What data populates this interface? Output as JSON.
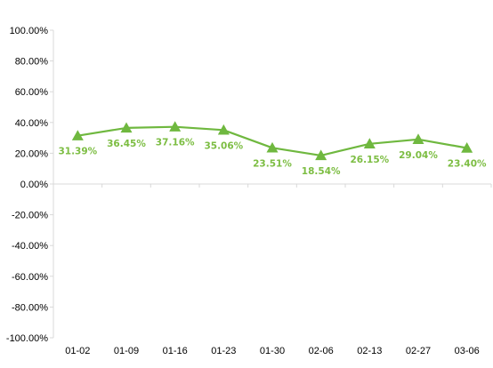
{
  "chart_data": {
    "type": "line",
    "categories": [
      "01-02",
      "01-09",
      "01-16",
      "01-23",
      "01-30",
      "02-06",
      "02-13",
      "02-27",
      "03-06"
    ],
    "series": [
      {
        "values": [
          31.39,
          36.45,
          37.16,
          35.06,
          23.51,
          18.54,
          26.15,
          29.04,
          23.4
        ],
        "labels": [
          "31.39%",
          "36.45%",
          "37.16%",
          "35.06%",
          "23.51%",
          "18.54%",
          "26.15%",
          "29.04%",
          "23.40%"
        ],
        "color": "#6fb83f",
        "label_color": "#7cbd42",
        "marker": "triangle"
      }
    ],
    "ylim": [
      -100,
      100
    ],
    "y_ticks": [
      100,
      80,
      60,
      40,
      20,
      0,
      -20,
      -40,
      -60,
      -80,
      -100
    ],
    "y_tick_labels": [
      "100.00%",
      "80.00%",
      "60.00%",
      "40.00%",
      "20.00%",
      "0.00%",
      "-20.00%",
      "-40.00%",
      "-60.00%",
      "-80.00%",
      "-100.00%"
    ],
    "title": "",
    "xlabel": "",
    "ylabel": "",
    "grid": false,
    "legend": "none",
    "axis_color": "#d9d9d9"
  }
}
